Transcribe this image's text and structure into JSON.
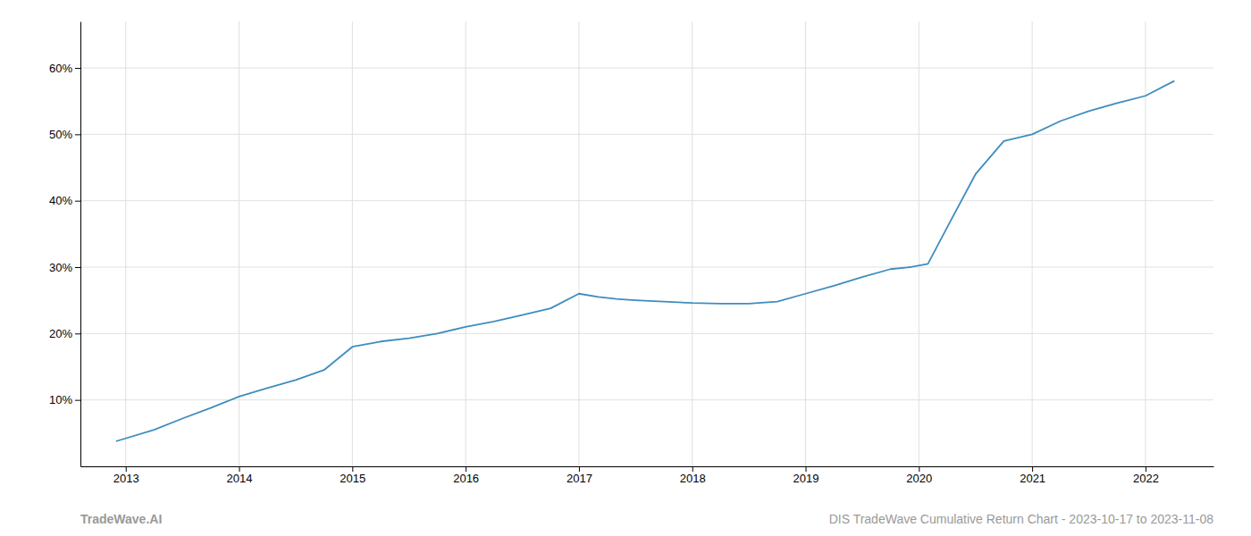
{
  "chart_data": {
    "type": "line",
    "x": [
      2012.92,
      2013.25,
      2013.5,
      2013.75,
      2014.0,
      2014.25,
      2014.5,
      2014.75,
      2015.0,
      2015.25,
      2015.5,
      2015.75,
      2016.0,
      2016.25,
      2016.5,
      2016.75,
      2017.0,
      2017.17,
      2017.33,
      2017.5,
      2017.75,
      2018.0,
      2018.25,
      2018.5,
      2018.75,
      2019.0,
      2019.25,
      2019.5,
      2019.75,
      2019.92,
      2020.08,
      2020.25,
      2020.5,
      2020.75,
      2021.0,
      2021.25,
      2021.5,
      2021.75,
      2022.0,
      2022.25
    ],
    "values": [
      0.038,
      0.055,
      0.072,
      0.088,
      0.105,
      0.118,
      0.13,
      0.145,
      0.18,
      0.188,
      0.193,
      0.2,
      0.21,
      0.218,
      0.228,
      0.238,
      0.26,
      0.255,
      0.252,
      0.25,
      0.248,
      0.246,
      0.245,
      0.245,
      0.248,
      0.26,
      0.272,
      0.285,
      0.297,
      0.3,
      0.305,
      0.36,
      0.44,
      0.49,
      0.5,
      0.52,
      0.535,
      0.547,
      0.558,
      0.58
    ],
    "color": "#3e8dbf",
    "xlim": [
      2012.6,
      2022.6
    ],
    "ylim": [
      0.0,
      0.67
    ],
    "xticks": [
      2013,
      2014,
      2015,
      2016,
      2017,
      2018,
      2019,
      2020,
      2021,
      2022
    ],
    "yticks": [
      {
        "value": 0.1,
        "label": "10%"
      },
      {
        "value": 0.2,
        "label": "20%"
      },
      {
        "value": 0.3,
        "label": "30%"
      },
      {
        "value": 0.4,
        "label": "40%"
      },
      {
        "value": 0.5,
        "label": "50%"
      },
      {
        "value": 0.6,
        "label": "60%"
      }
    ],
    "grid": true,
    "annotations": [
      "TradeWave.AI",
      "DIS TradeWave Cumulative Return Chart - 2023-10-17 to 2023-11-08"
    ]
  }
}
